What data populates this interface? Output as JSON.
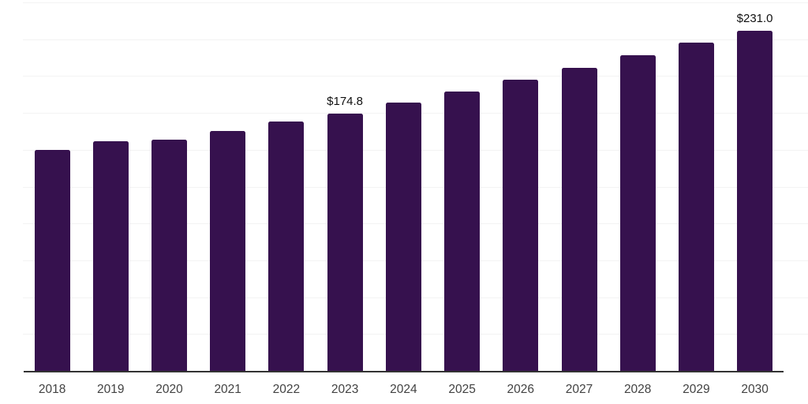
{
  "chart_data": {
    "type": "bar",
    "title": "",
    "xlabel": "",
    "ylabel": "",
    "categories": [
      "2018",
      "2019",
      "2020",
      "2021",
      "2022",
      "2023",
      "2024",
      "2025",
      "2026",
      "2027",
      "2028",
      "2029",
      "2030"
    ],
    "values": [
      150.1,
      156.0,
      156.8,
      163.0,
      169.0,
      174.8,
      182.0,
      189.8,
      197.7,
      205.8,
      214.3,
      222.9,
      231.0
    ],
    "value_labels": [
      {
        "category": "2023",
        "text": "$174.8"
      },
      {
        "category": "2030",
        "text": "$231.0"
      }
    ],
    "ylim": [
      0,
      250
    ],
    "gridline_interval": 25,
    "grid": "horizontal-only",
    "legend": "none",
    "y_tick_labels_visible": false,
    "colors": {
      "bar": "#36114E",
      "gridline": "#F3F3F3",
      "axis_line": "#333333",
      "value_label_text": "#111111",
      "x_tick_text": "#424242",
      "background": "#FFFFFF"
    }
  }
}
